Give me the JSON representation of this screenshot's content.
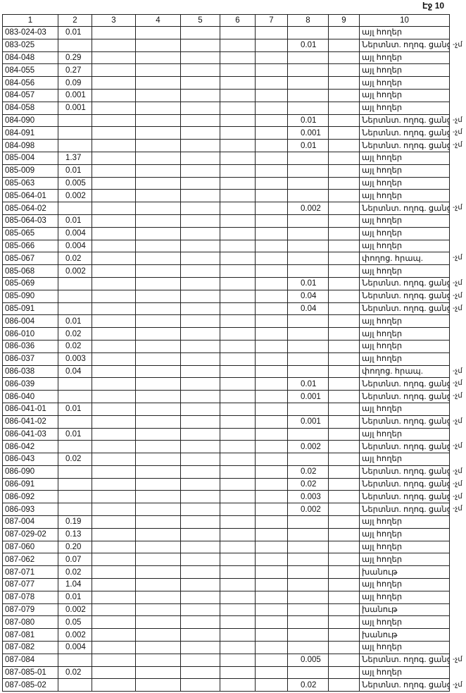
{
  "header": {
    "page": "Էջ 10"
  },
  "table": {
    "columns": [
      "1",
      "2",
      "3",
      "4",
      "5",
      "6",
      "7",
      "8",
      "9",
      "10"
    ],
    "rows": [
      {
        "c1": "083-024-03",
        "c2": "0.01",
        "c10": "այլ հողեր"
      },
      {
        "c1": "083-025",
        "c8": "0.01",
        "c10": "Ներտնտ. ողոգ. ցանց",
        "mark": "-չմ"
      },
      {
        "c1": "084-048",
        "c2": "0.29",
        "c10": "այլ հողեր"
      },
      {
        "c1": "084-055",
        "c2": "0.27",
        "c10": "այլ հողեր"
      },
      {
        "c1": "084-056",
        "c2": "0.09",
        "c10": "այլ հողեր"
      },
      {
        "c1": "084-057",
        "c2": "0.001",
        "c10": "այլ հողեր"
      },
      {
        "c1": "084-058",
        "c2": "0.001",
        "c10": "այլ հողեր"
      },
      {
        "c1": "084-090",
        "c8": "0.01",
        "c10": "Ներտնտ. ողոգ. ցանց",
        "mark": "-չմ"
      },
      {
        "c1": "084-091",
        "c8": "0.001",
        "c10": "Ներտնտ. ողոգ. ցանց",
        "mark": "-չմ"
      },
      {
        "c1": "084-098",
        "c8": "0.01",
        "c10": "Ներտնտ. ողոգ. ցանց",
        "mark": "-չմ"
      },
      {
        "c1": "085-004",
        "c2": "1.37",
        "c10": "այլ հողեր"
      },
      {
        "c1": "085-009",
        "c2": "0.01",
        "c10": "այլ հողեր"
      },
      {
        "c1": "085-063",
        "c2": "0.005",
        "c10": "այլ հողեր"
      },
      {
        "c1": "085-064-01",
        "c2": "0.002",
        "c10": "այլ հողեր"
      },
      {
        "c1": "085-064-02",
        "c8": "0.002",
        "c10": "Ներտնտ. ողոգ. ցանց",
        "mark": "-չմ"
      },
      {
        "c1": "085-064-03",
        "c2": "0.01",
        "c10": "այլ հողեր"
      },
      {
        "c1": "085-065",
        "c2": "0.004",
        "c10": "այլ հողեր"
      },
      {
        "c1": "085-066",
        "c2": "0.004",
        "c10": "այլ հողեր"
      },
      {
        "c1": "085-067",
        "c2": "0.02",
        "c10": "փողոց. հրապ.",
        "mark": "-չմ"
      },
      {
        "c1": "085-068",
        "c2": "0.002",
        "c10": "այլ հողեր"
      },
      {
        "c1": "085-069",
        "c8": "0.01",
        "c10": "Ներտնտ. ողոգ. ցանց",
        "mark": "-չմ"
      },
      {
        "c1": "085-090",
        "c8": "0.04",
        "c10": "Ներտնտ. ողոգ. ցանց",
        "mark": "-չմ"
      },
      {
        "c1": "085-091",
        "c8": "0.04",
        "c10": "Ներտնտ. ողոգ. ցանց",
        "mark": "-չմ"
      },
      {
        "c1": "086-004",
        "c2": "0.01",
        "c10": "այլ հողեր"
      },
      {
        "c1": "086-010",
        "c2": "0.02",
        "c10": "այլ հողեր"
      },
      {
        "c1": "086-036",
        "c2": "0.02",
        "c10": "այլ հողեր"
      },
      {
        "c1": "086-037",
        "c2": "0.003",
        "c10": "այլ հողեր"
      },
      {
        "c1": "086-038",
        "c2": "0.04",
        "c10": "փողոց. հրապ.",
        "mark": "-չմ"
      },
      {
        "c1": "086-039",
        "c8": "0.01",
        "c10": "Ներտնտ. ողոգ. ցանց",
        "mark": "-չմ"
      },
      {
        "c1": "086-040",
        "c8": "0.001",
        "c10": "Ներտնտ. ողոգ. ցանց",
        "mark": "-չմ"
      },
      {
        "c1": "086-041-01",
        "c2": "0.01",
        "c10": "այլ հողեր"
      },
      {
        "c1": "086-041-02",
        "c8": "0.001",
        "c10": "Ներտնտ. ողոգ. ցանց",
        "mark": "-չմ"
      },
      {
        "c1": "086-041-03",
        "c2": "0.01",
        "c10": "այլ հողեր"
      },
      {
        "c1": "086-042",
        "c8": "0.002",
        "c10": "Ներտնտ. ողոգ. ցանց",
        "mark": "-չմ"
      },
      {
        "c1": "086-043",
        "c2": "0.02",
        "c10": "այլ հողեր"
      },
      {
        "c1": "086-090",
        "c8": "0.02",
        "c10": "Ներտնտ. ողոգ. ցանց",
        "mark": "-չմ"
      },
      {
        "c1": "086-091",
        "c8": "0.02",
        "c10": "Ներտնտ. ողոգ. ցանց",
        "mark": "-չմ"
      },
      {
        "c1": "086-092",
        "c8": "0.003",
        "c10": "Ներտնտ. ողոգ. ցանց",
        "mark": "-չմ"
      },
      {
        "c1": "086-093",
        "c8": "0.002",
        "c10": "Ներտնտ. ողոգ. ցանց",
        "mark": "-չմ"
      },
      {
        "c1": "087-004",
        "c2": "0.19",
        "c10": "այլ հողեր"
      },
      {
        "c1": "087-029-02",
        "c2": "0.13",
        "c10": "այլ հողեր"
      },
      {
        "c1": "087-060",
        "c2": "0.20",
        "c10": "այլ հողեր"
      },
      {
        "c1": "087-062",
        "c2": "0.07",
        "c10": "այլ հողեր"
      },
      {
        "c1": "087-071",
        "c2": "0.02",
        "c10": "խանութ"
      },
      {
        "c1": "087-077",
        "c2": "1.04",
        "c10": "այլ հողեր"
      },
      {
        "c1": "087-078",
        "c2": "0.01",
        "c10": "այլ հողեր"
      },
      {
        "c1": "087-079",
        "c2": "0.002",
        "c10": "խանութ"
      },
      {
        "c1": "087-080",
        "c2": "0.05",
        "c10": "այլ հողեր"
      },
      {
        "c1": "087-081",
        "c2": "0.002",
        "c10": "խանութ"
      },
      {
        "c1": "087-082",
        "c2": "0.004",
        "c10": "այլ հողեր"
      },
      {
        "c1": "087-084",
        "c8": "0.005",
        "c10": "Ներտնտ. ողոգ. ցանց",
        "mark": "-չմ"
      },
      {
        "c1": "087-085-01",
        "c2": "0.02",
        "c10": "այլ հողեր"
      },
      {
        "c1": "087-085-02",
        "c8": "0.02",
        "c10": "Ներտնտ. ողոգ. ցանց",
        "mark": "-չմ"
      }
    ]
  }
}
